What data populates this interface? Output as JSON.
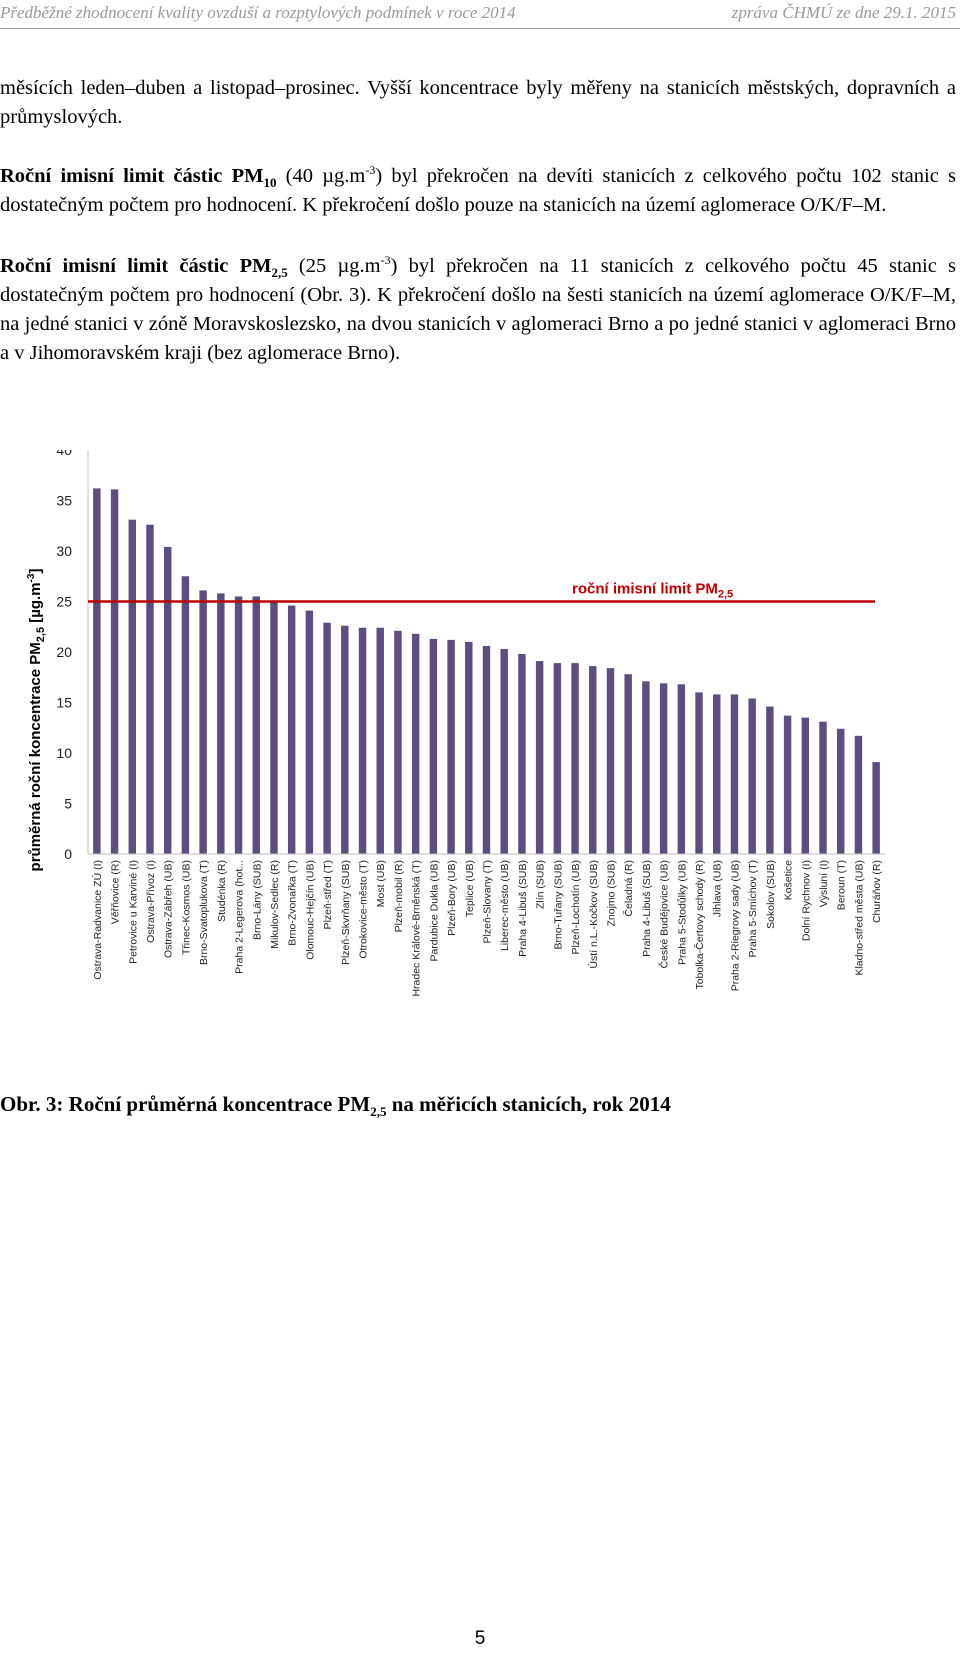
{
  "header": {
    "left": "Předběžné zhodnocení kvality ovzduší a rozptylových podmínek v roce 2014",
    "right": "zpráva ČHMÚ ze dne 29.1. 2015"
  },
  "paragraphs": {
    "p1": "měsících leden–duben a listopad–prosinec. Vyšší koncentrace byly měřeny na stanicích městských, dopravních a průmyslových.",
    "p2": {
      "bold": "Roční imisní limit částic PM",
      "bold_sub": "10",
      "pre_sup": " (40 µg.m",
      "sup": "-3",
      "rest": ") byl překročen na devíti stanicích z celkového počtu 102 stanic s dostatečným počtem pro hodnocení. K překročení došlo pouze na stanicích na území aglomerace O/K/F–M."
    },
    "p3": {
      "bold": "Roční imisní limit částic PM",
      "bold_sub": "2,5",
      "pre_sup": " (25 µg.m",
      "sup": "-3",
      "rest": ") byl překročen na 11 stanicích z celkového počtu 45 stanic s dostatečným počtem pro hodnocení (Obr. 3). K překročení došlo na šesti stanicích na území aglomerace O/K/F–M, na jedné stanici v zóně Moravskoslezsko, na dvou stanicích v aglomeraci Brno a po jedné stanici v aglomeraci Brno a v Jihomoravském kraji (bez aglomerace Brno)."
    }
  },
  "chart_data": {
    "type": "bar",
    "ylabel_main": "průměrná roční koncentrace PM",
    "ylabel_sub": "2,5",
    "ylabel_unit": " [µg.m",
    "ylabel_sup": "-3",
    "ylabel_end": "]",
    "ylim": [
      0,
      40
    ],
    "yticks": [
      0,
      5,
      10,
      15,
      20,
      25,
      30,
      35,
      40
    ],
    "grid": false,
    "bar_color": "#5e4d7f",
    "limit": {
      "value": 25,
      "label": "roční imisní limit PM",
      "label_sub": "2,5",
      "color": "#c00000"
    },
    "categories": [
      "Ostrava-Radvanice ZÚ (I)",
      "Věřňovice (R)",
      "Petrovice u Karviné (I)",
      "Ostrava-Přívoz (I)",
      "Ostrava-Zábřeh (UB)",
      "Třinec-Kosmos (UB)",
      "Brno-Svatoplukova (T)",
      "Studénka (R)",
      "Praha 2-Legerova (hot...",
      "Brno-Lány (SUB)",
      "Mikulov-Sedlec (R)",
      "Brno-Zvonařka (T)",
      "Olomouc-Hejčín (UB)",
      "Plzeň-střed (T)",
      "Plzeň-Skvrňany (SUB)",
      "Otrokovice-město (T)",
      "Most (UB)",
      "Plzeň-mobil (R)",
      "Hradec Králové-Brněnská (T)",
      "Pardubice Dukla (UB)",
      "Plzeň-Bory (UB)",
      "Teplice (UB)",
      "Plzeň-Slovany (T)",
      "Liberec-město (UB)",
      "Praha 4-Libuš (SUB)",
      "Zlín (SUB)",
      "Brno-Tuřany (SUB)",
      "Plzeň-Lochotín (UB)",
      "Ústí n.L.-Kočkov (SUB)",
      "Znojmo (SUB)",
      "Čeladná (R)",
      "Praha 4-Libuš (SUB)",
      "České Budějovice (UB)",
      "Praha 5-Stodůlky (UB)",
      "Tobolka-Čertovy schody (R)",
      "Jihlava (UB)",
      "Praha 2-Riegrovy sady (UB)",
      "Praha 5-Smíchov (T)",
      "Sokolov (SUB)",
      "Košetice",
      "Dolní Rychnov (I)",
      "Výsluní (I)",
      "Beroun (T)",
      "Kladno-střed města (UB)",
      "Churáňov (R)"
    ],
    "values": [
      36.2,
      36.1,
      33.1,
      32.6,
      30.4,
      27.5,
      26.1,
      25.8,
      25.5,
      25.5,
      25.1,
      24.6,
      24.1,
      22.9,
      22.6,
      22.4,
      22.4,
      22.1,
      21.8,
      21.3,
      21.2,
      21.0,
      20.6,
      20.3,
      19.8,
      19.1,
      18.9,
      18.9,
      18.6,
      18.4,
      17.8,
      17.1,
      16.9,
      16.8,
      16.0,
      15.8,
      15.8,
      15.4,
      14.6,
      13.7,
      13.5,
      13.1,
      12.4,
      11.7,
      9.1
    ]
  },
  "caption": {
    "pre": "Obr. 3: Roční průměrná koncentrace PM",
    "sub": "2,5",
    "post": " na měřicích stanicích, rok 2014"
  },
  "page_number": "5"
}
